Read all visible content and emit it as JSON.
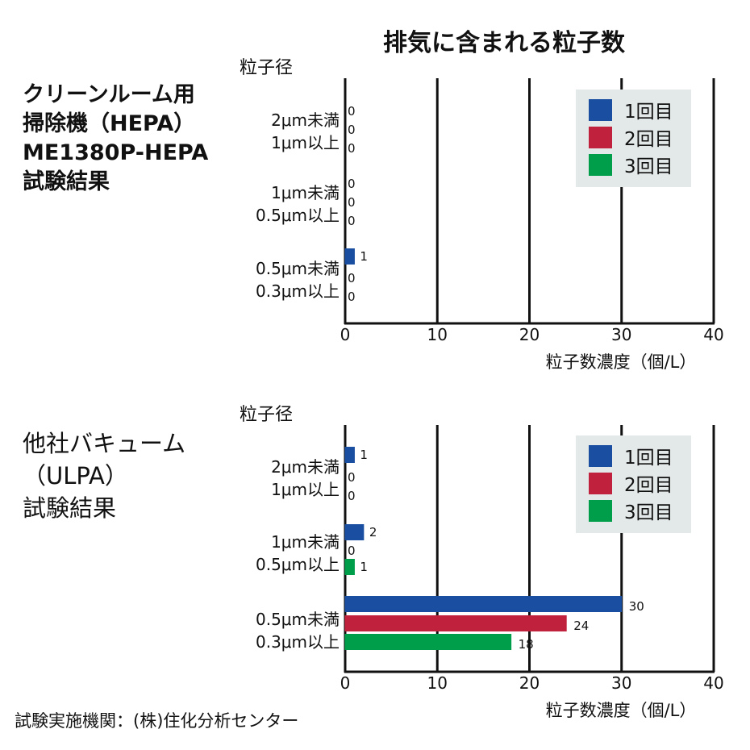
{
  "title": "排気に含まれる粒子数",
  "footer": "試験実施機関：(株)住化分析センター",
  "colors": {
    "1回目": "#1a4ea0",
    "2回目": "#c0213c",
    "3回目": "#009e4a",
    "legend_bg": "#e3e8e8"
  },
  "chart_data": [
    {
      "type": "bar",
      "orientation": "horizontal",
      "side_title": [
        "クリーンルーム用",
        "掃除機（HEPA）",
        "ME1380P-HEPA",
        "試験結果"
      ],
      "ylabel": "粒子径",
      "xlabel": "粒子数濃度（個/L）",
      "xlim": [
        0,
        40
      ],
      "xticks": [
        0,
        10,
        20,
        30,
        40
      ],
      "grid": true,
      "legend": "top-right",
      "categories": [
        [
          "2μm未満",
          "1μm以上"
        ],
        [
          "1μm未満",
          "0.5μm以上"
        ],
        [
          "0.5μm未満",
          "0.3μm以上"
        ]
      ],
      "series": [
        {
          "name": "1回目",
          "values": [
            0,
            0,
            1
          ]
        },
        {
          "name": "2回目",
          "values": [
            0,
            0,
            0
          ]
        },
        {
          "name": "3回目",
          "values": [
            0,
            0,
            0
          ]
        }
      ]
    },
    {
      "type": "bar",
      "orientation": "horizontal",
      "side_title": [
        "他社バキューム",
        "（ULPA）",
        "試験結果"
      ],
      "ylabel": "粒子径",
      "xlabel": "粒子数濃度（個/L）",
      "xlim": [
        0,
        40
      ],
      "xticks": [
        0,
        10,
        20,
        30,
        40
      ],
      "grid": true,
      "legend": "top-right",
      "categories": [
        [
          "2μm未満",
          "1μm以上"
        ],
        [
          "1μm未満",
          "0.5μm以上"
        ],
        [
          "0.5μm未満",
          "0.3μm以上"
        ]
      ],
      "series": [
        {
          "name": "1回目",
          "values": [
            1,
            2,
            30
          ]
        },
        {
          "name": "2回目",
          "values": [
            0,
            0,
            24
          ]
        },
        {
          "name": "3回目",
          "values": [
            0,
            1,
            18
          ]
        }
      ]
    }
  ]
}
